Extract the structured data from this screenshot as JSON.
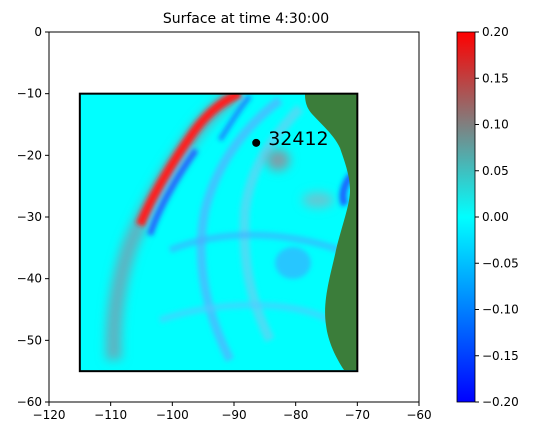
{
  "chart_data": {
    "type": "heatmap",
    "title": "Surface at time 4:30:00",
    "xlabel": "",
    "ylabel": "",
    "xlim": [
      -120,
      -60
    ],
    "ylim": [
      -60,
      0
    ],
    "xticks": [
      -120,
      -110,
      -100,
      -90,
      -80,
      -70,
      -60
    ],
    "yticks": [
      0,
      -10,
      -20,
      -30,
      -40,
      -50,
      -60
    ],
    "grid": false,
    "domain_box": {
      "x": [
        -115,
        -70
      ],
      "y": [
        -55,
        -10
      ]
    },
    "station": {
      "label": "32412",
      "x": -86.4,
      "y": -17.97
    },
    "colorbar": {
      "min": -0.2,
      "max": 0.2,
      "ticks": [
        0.2,
        0.15,
        0.1,
        0.05,
        0.0,
        -0.05,
        -0.1,
        -0.15,
        -0.2
      ],
      "tick_labels": [
        "0.20",
        "0.15",
        "0.10",
        "0.05",
        "0.00",
        "−0.05",
        "−0.10",
        "−0.15",
        "−0.20"
      ],
      "colors": [
        "#0000ff",
        "#00ffff",
        "#ff0000"
      ]
    },
    "colors": {
      "land": "#3b7d3a",
      "background": "#00ffff"
    }
  }
}
